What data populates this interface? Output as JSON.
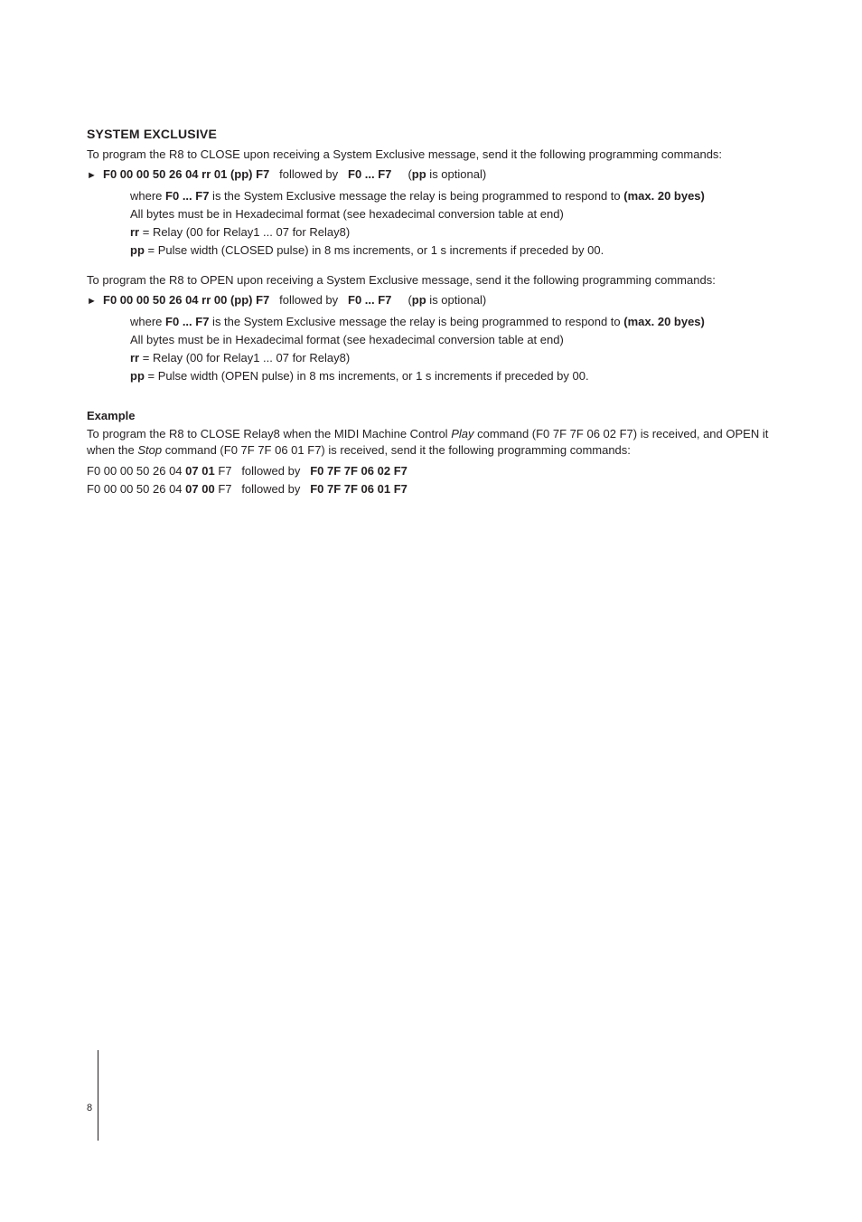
{
  "page_number": "8",
  "heading": "SYSTEM EXCLUSIVE",
  "close_intro": "To program the R8 to CLOSE upon receiving a System Exclusive message, send it the following programming commands:",
  "open_intro": "To program the R8 to OPEN upon receiving a System Exclusive message, send it the following programming commands:",
  "close_bullet": {
    "cmd_bold": "F0 00 00 50 26 04 rr 01 (pp) F7",
    "followed_by": "   followed by   ",
    "range": "F0 ... F7",
    "opt_open": "     (",
    "pp_bold": "pp",
    "opt_rest": " is optional)"
  },
  "open_bullet": {
    "cmd_bold": "F0 00 00 50 26 04 rr 00 (pp) F7",
    "followed_by": "   followed by   ",
    "range": "F0 ... F7",
    "opt_open": "     (",
    "pp_bold": "pp",
    "opt_rest": " is optional)"
  },
  "indent_where_1": "where ",
  "indent_where_bold": "F0 ... F7",
  "indent_where_2": " is the System Exclusive message the relay is being programmed to respond to ",
  "indent_where_max": "(max. 20 byes)",
  "indent_allbytes": "All bytes must be in Hexadecimal format (see hexadecimal conversion table at end)",
  "indent_rr_bold": "rr",
  "indent_rr_rest": " = Relay (00 for Relay1 ... 07 for Relay8)",
  "indent_pp_bold": "pp",
  "indent_pp_close": " = Pulse width (CLOSED pulse) in 8 ms increments, or 1 s increments if preceded by 00.",
  "indent_pp_open": " = Pulse width (OPEN pulse) in 8 ms increments, or 1 s increments if preceded by 00.",
  "example_heading": "Example",
  "example_para_1": "To program the R8 to CLOSE Relay8 when the MIDI Machine Control ",
  "example_play": "Play",
  "example_para_2": " command (F0 7F 7F 06 02 F7) is received, and OPEN it when the ",
  "example_stop": "Stop",
  "example_para_3": " command (F0 7F 7F 06 01 F7) is received, send it the following programming commands:",
  "ex1_plain1": "F0 00 00 50 26 04 ",
  "ex1_bold1": "07 01",
  "ex1_plain2": " F7   followed by   ",
  "ex1_bold2": "F0 7F 7F 06 02 F7",
  "ex2_plain1": "F0 00 00 50 26 04 ",
  "ex2_bold1": "07 00",
  "ex2_plain2": " F7   followed by   ",
  "ex2_bold2": "F0 7F 7F 06 01 F7",
  "marker": "►"
}
